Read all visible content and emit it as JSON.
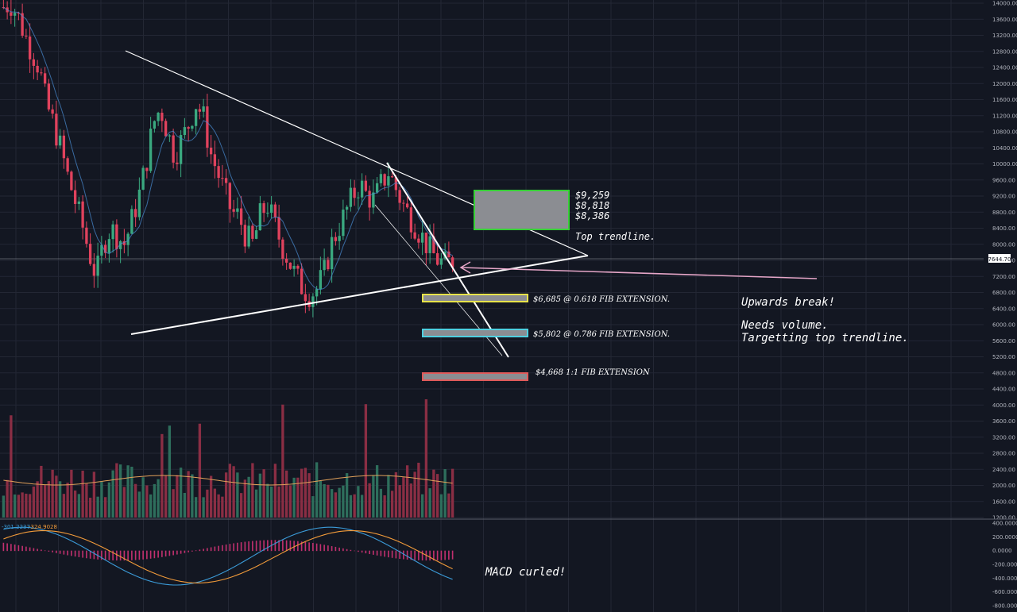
{
  "price_label": "7644.70",
  "annotations": {
    "zone_prices": [
      "$9,259",
      "$8,818",
      "$8,386"
    ],
    "top_trendline": "Top trendline.",
    "upwards_break": "Upwards break!",
    "needs_volume": "Needs volume.",
    "targetting": "Targetting top trendline.",
    "macd_curled": "MACD curled!"
  },
  "fib_levels": [
    {
      "label": "$6,685 @ 0.618 FIB EXTENSION.",
      "price": 6685,
      "color": "#e7e34a"
    },
    {
      "label": "$5,802 @ 0.786 FIB EXTENSION.",
      "price": 5802,
      "color": "#4fd0e0"
    },
    {
      "label": "$4,668 1:1 FIB EXTENSION",
      "price": 4668,
      "color": "#e05a5a"
    }
  ],
  "chart_data": {
    "type": "candlestick",
    "price_axis": {
      "ticks": [
        "14000.00",
        "13600.00",
        "13200.00",
        "12800.00",
        "12400.00",
        "12000.00",
        "11600.00",
        "11200.00",
        "10800.00",
        "10400.00",
        "10000.00",
        "9600.00",
        "9200.00",
        "8800.00",
        "8400.00",
        "8000.00",
        "7600.00",
        "7200.00",
        "6800.00",
        "6400.00",
        "6000.00",
        "5600.00",
        "5200.00",
        "4800.00",
        "4400.00",
        "4000.00",
        "3600.00",
        "3200.00",
        "2800.00",
        "2400.00",
        "2000.00",
        "1600.00",
        "1200.00"
      ],
      "range": [
        1200,
        14000
      ]
    },
    "macd_axis": {
      "ticks": [
        "400.0000",
        "200.0000",
        "0.0000",
        "-200.0000",
        "-400.0000",
        "-600.0000",
        "-800.0000"
      ],
      "range": [
        -800,
        400
      ]
    },
    "macd_values": {
      "macd": "-301.2237",
      "signal": "-324.9028"
    },
    "current_price": 7644.7,
    "close_path": [
      13900,
      14000,
      13700,
      13200,
      12800,
      12400,
      11500,
      11000,
      10400,
      9700,
      9100,
      8500,
      7800,
      7200,
      8000,
      8400,
      8200,
      8000,
      8600,
      9200,
      10000,
      11000,
      11400,
      10800,
      10200,
      10600,
      11000,
      11500,
      11200,
      10300,
      9800,
      9300,
      8800,
      8700,
      8200,
      8000,
      8700,
      9000,
      8500,
      8000,
      7600,
      7200,
      6900,
      6750,
      6900,
      7300,
      8000,
      8400,
      8800,
      9200,
      9500,
      9200,
      9100,
      9500,
      9800,
      9400,
      9000,
      8700,
      8400,
      8100,
      7800,
      7600,
      7500,
      7600
    ],
    "zone": {
      "top": 9259,
      "mid": 8818,
      "bottom": 8386
    }
  }
}
